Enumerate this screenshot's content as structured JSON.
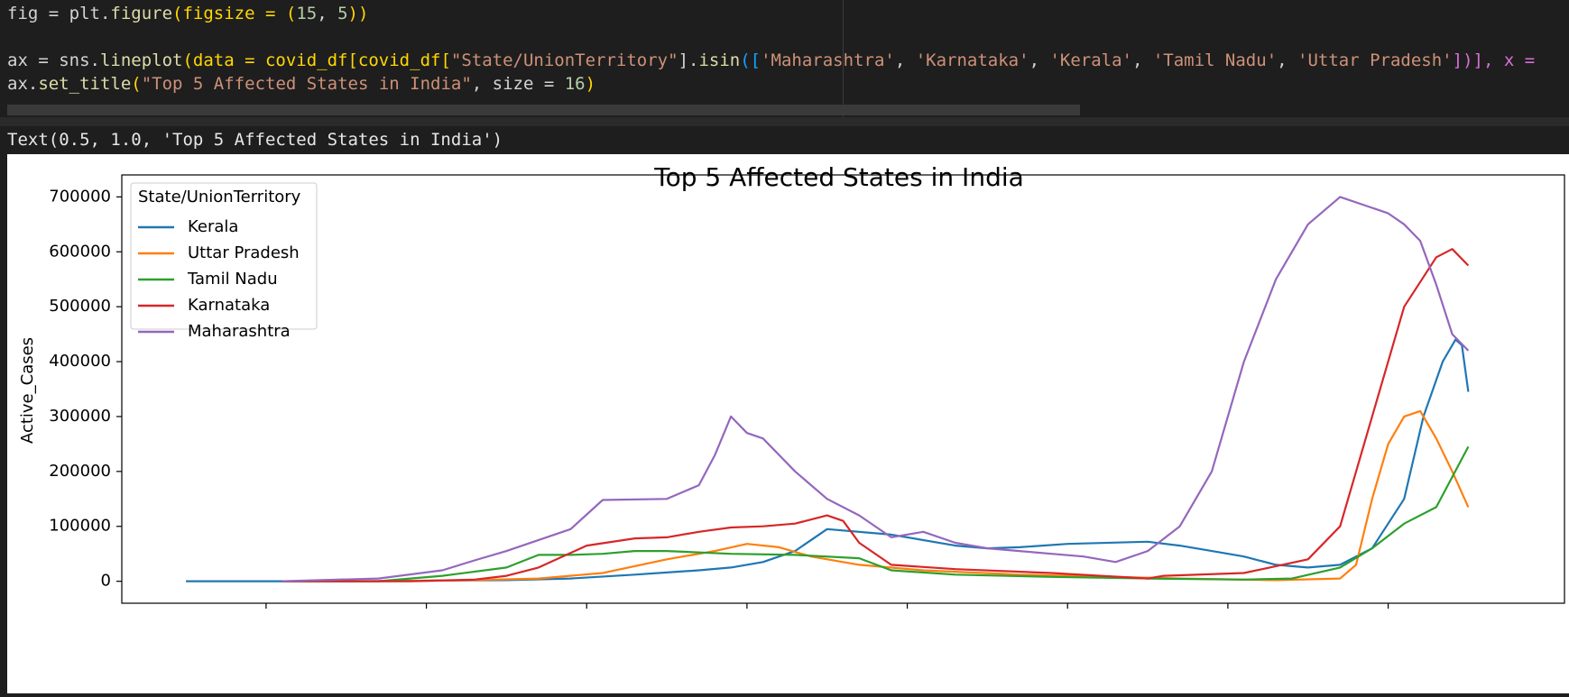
{
  "code": {
    "line1": {
      "a": "fig = plt.",
      "fn": "figure",
      "b": "(figsize = (",
      "n1": "15",
      "c": ", ",
      "n2": "5",
      "d": "))"
    },
    "line2": {
      "a": "ax = sns.",
      "fn": "lineplot",
      "b": "(data = covid_df[covid_df[",
      "s1": "\"State/UnionTerritory\"",
      "c": "].",
      "fn2": "isin",
      "d": "([",
      "s2": "'Maharashtra'",
      "e": ", ",
      "s3": "'Karnataka'",
      "f": ", ",
      "s4": "'Kerala'",
      "g": ", ",
      "s5": "'Tamil Nadu'",
      "h": ", ",
      "s6": "'Uttar Pradesh'",
      "i": "])], x ="
    },
    "line3": {
      "a": "ax.",
      "fn": "set_title",
      "b": "(",
      "s1": "\"Top 5 Affected States in India\"",
      "c": ", size = ",
      "n1": "16",
      "d": ")"
    }
  },
  "output_text": "Text(0.5, 1.0, 'Top 5 Affected States in India')",
  "chart_data": {
    "type": "line",
    "title": "Top 5 Affected States in India",
    "xlabel": "",
    "ylabel": "Active_Cases",
    "ylim": [
      -40000,
      740000
    ],
    "xlim": [
      -20,
      430
    ],
    "yticks": [
      0,
      100000,
      200000,
      300000,
      400000,
      500000,
      600000,
      700000
    ],
    "ytick_labels": [
      "0",
      "100000",
      "200000",
      "300000",
      "400000",
      "500000",
      "600000",
      "700000"
    ],
    "xticks": [
      25,
      75,
      125,
      175,
      225,
      275,
      325,
      375
    ],
    "grid": false,
    "legend": {
      "title": "State/UnionTerritory",
      "placement": "top-left"
    },
    "series": [
      {
        "name": "Kerala",
        "color": "#1f77b4",
        "x": [
          0,
          50,
          100,
          120,
          140,
          160,
          170,
          180,
          190,
          200,
          220,
          240,
          250,
          260,
          275,
          300,
          310,
          320,
          330,
          340,
          350,
          360,
          370,
          380,
          386,
          392,
          396,
          398,
          400
        ],
        "y": [
          0,
          0,
          2000,
          5000,
          12000,
          20000,
          25000,
          35000,
          55000,
          95000,
          85000,
          65000,
          60000,
          62000,
          68000,
          72000,
          65000,
          55000,
          45000,
          30000,
          25000,
          30000,
          60000,
          150000,
          300000,
          400000,
          440000,
          430000,
          345000
        ]
      },
      {
        "name": "Uttar Pradesh",
        "color": "#ff7f0e",
        "x": [
          30,
          60,
          90,
          110,
          130,
          150,
          165,
          175,
          185,
          195,
          210,
          230,
          260,
          290,
          310,
          340,
          360,
          365,
          370,
          375,
          380,
          385,
          390,
          395,
          400
        ],
        "y": [
          0,
          0,
          2000,
          5000,
          15000,
          40000,
          55000,
          68000,
          62000,
          45000,
          30000,
          20000,
          12000,
          8000,
          5000,
          2000,
          5000,
          30000,
          150000,
          250000,
          300000,
          310000,
          260000,
          200000,
          135000
        ]
      },
      {
        "name": "Tamil Nadu",
        "color": "#2ca02c",
        "x": [
          30,
          60,
          80,
          100,
          110,
          120,
          130,
          140,
          150,
          170,
          190,
          210,
          220,
          240,
          270,
          300,
          330,
          345,
          360,
          370,
          380,
          390,
          400
        ],
        "y": [
          0,
          0,
          10000,
          25000,
          48000,
          48000,
          50000,
          55000,
          55000,
          50000,
          48000,
          42000,
          20000,
          12000,
          8000,
          5000,
          3000,
          5000,
          25000,
          60000,
          105000,
          135000,
          245000
        ]
      },
      {
        "name": "Karnataka",
        "color": "#d62728",
        "x": [
          30,
          70,
          90,
          100,
          110,
          125,
          140,
          150,
          160,
          170,
          180,
          190,
          200,
          205,
          210,
          220,
          240,
          270,
          300,
          305,
          330,
          350,
          360,
          370,
          380,
          390,
          395,
          400
        ],
        "y": [
          0,
          0,
          3000,
          10000,
          25000,
          65000,
          78000,
          80000,
          90000,
          98000,
          100000,
          105000,
          120000,
          110000,
          70000,
          30000,
          22000,
          15000,
          5000,
          10000,
          15000,
          40000,
          100000,
          300000,
          500000,
          590000,
          605000,
          575000
        ]
      },
      {
        "name": "Maharashtra",
        "color": "#9467bd",
        "x": [
          30,
          60,
          80,
          90,
          100,
          120,
          130,
          150,
          160,
          165,
          170,
          175,
          180,
          190,
          200,
          210,
          220,
          230,
          240,
          250,
          260,
          270,
          280,
          290,
          300,
          310,
          320,
          330,
          340,
          350,
          360,
          370,
          375,
          380,
          385,
          390,
          395,
          400
        ],
        "y": [
          0,
          5000,
          20000,
          38000,
          55000,
          95000,
          148000,
          150000,
          175000,
          230000,
          300000,
          270000,
          260000,
          200000,
          150000,
          120000,
          80000,
          90000,
          70000,
          60000,
          55000,
          50000,
          45000,
          35000,
          55000,
          100000,
          200000,
          400000,
          550000,
          650000,
          700000,
          680000,
          670000,
          650000,
          620000,
          540000,
          450000,
          420000
        ]
      }
    ]
  }
}
